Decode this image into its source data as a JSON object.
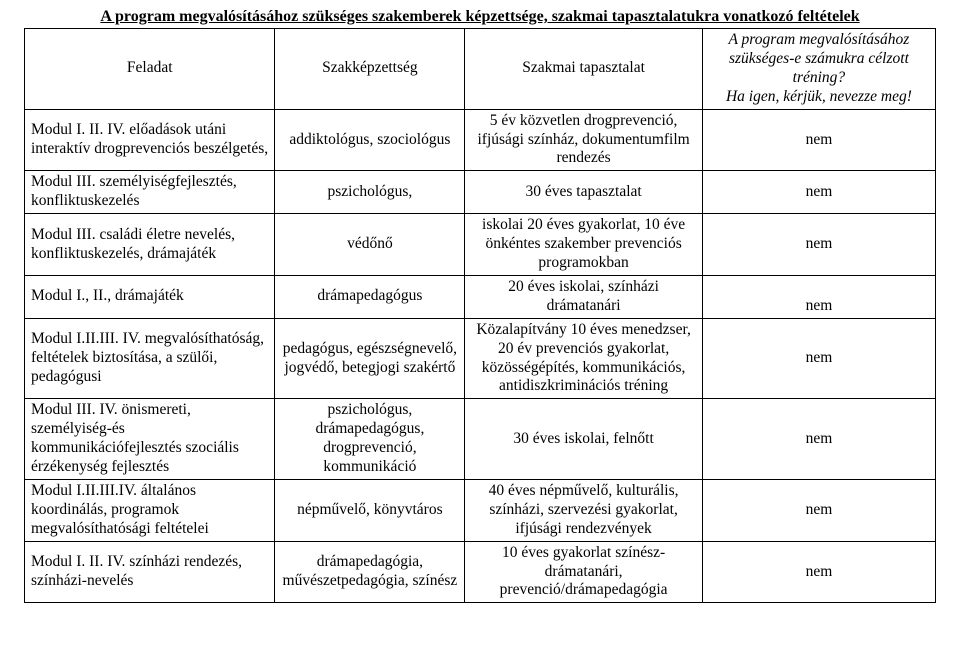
{
  "title": "A program megvalósításához szükséges szakemberek képzettsége, szakmai tapasztalatukra vonatkozó feltételek",
  "headers": {
    "feladat": "Feladat",
    "szakkepzettseg": "Szakképzettség",
    "tapasztalat": "Szakmai tapasztalat",
    "trening_l1": "A program megvalósításához szükséges-e számukra célzott tréning?",
    "trening_l2": "Ha igen, kérjük, nevezze meg!"
  },
  "rows": [
    {
      "feladat": "Modul I. II. IV. előadások utáni interaktív drogprevenciós beszélgetés,",
      "szak": "addiktológus, szociológus",
      "tap": "5 év közvetlen drogprevenció, ifjúsági színház, dokumentumfilm rendezés",
      "tren": "nem"
    },
    {
      "feladat": "Modul III. személyiségfejlesztés, konfliktuskezelés",
      "szak": "pszichológus,",
      "tap": "30 éves tapasztalat",
      "tren": "nem"
    },
    {
      "feladat": "Modul III. családi életre nevelés, konfliktuskezelés, drámajáték",
      "szak": "védőnő",
      "tap": "iskolai 20 éves gyakorlat, 10 éve önkéntes szakember prevenciós programokban",
      "tren": "nem"
    },
    {
      "feladat": "Modul I., II., drámajáték",
      "szak": "drámapedagógus",
      "tap": "20 éves iskolai, színházi drámatanári",
      "tren": "nem"
    },
    {
      "feladat": "Modul I.II.III. IV. megvalósíthatóság, feltételek biztosítása, a szülői, pedagógusi",
      "szak": "pedagógus, egészségnevelő, jogvédő, betegjogi szakértő",
      "tap": "Közalapítvány 10 éves menedzser, 20 év prevenciós gyakorlat, közösségépítés, kommunikációs, antidiszkriminációs tréning",
      "tren": "nem"
    },
    {
      "feladat": "Modul III. IV. önismereti, személyiség-és kommunikációfejlesztés szociális érzékenység fejlesztés",
      "szak": "pszichológus, drámapedagógus, drogprevenció, kommunikáció",
      "tap": "30 éves iskolai, felnőtt",
      "tren": "nem"
    },
    {
      "feladat": "Modul I.II.III.IV. általános koordinálás, programok megvalósíthatósági feltételei",
      "szak": "népművelő, könyvtáros",
      "tap": "40 éves népművelő, kulturális, színházi, szervezési gyakorlat, ifjúsági rendezvények",
      "tren": "nem"
    },
    {
      "feladat": "Modul  I. II. IV. színházi rendezés, színházi-nevelés",
      "szak": "drámapedagógia, művészetpedagógia, színész",
      "tap": "10 éves gyakorlat színész-drámatanári, prevenció/drámapedagógia",
      "tren": "nem"
    }
  ]
}
